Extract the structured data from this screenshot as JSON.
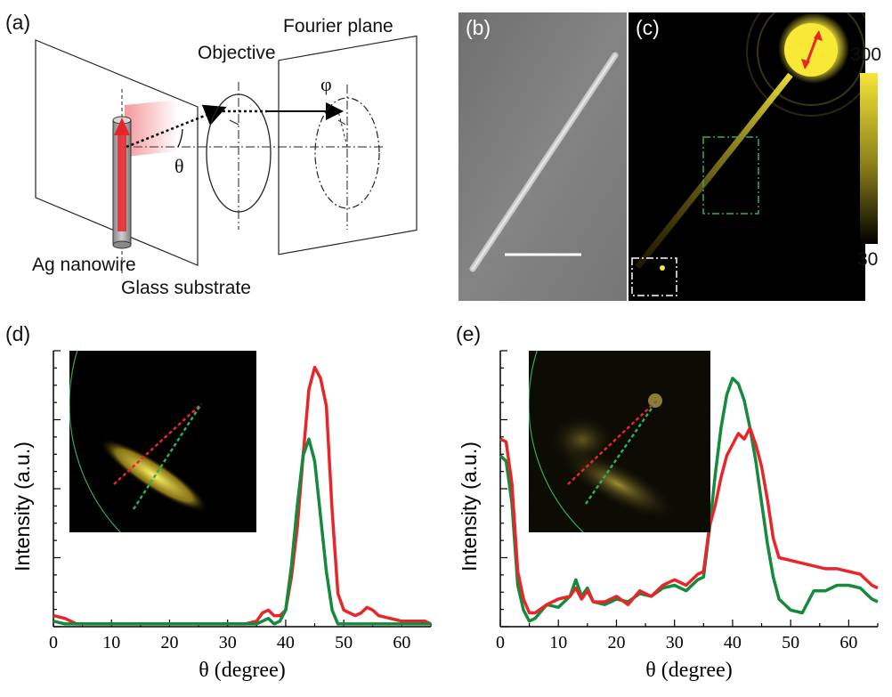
{
  "panels": {
    "a": {
      "label": "(a)",
      "objective": "Objective",
      "fourier_plane": "Fourier plane",
      "phi": "φ",
      "theta": "θ",
      "nanowire": "Ag nanowire",
      "substrate": "Glass substrate"
    },
    "b": {
      "label": "(b)"
    },
    "c": {
      "label": "(c)",
      "colorbar_max": "300",
      "colorbar_min": "30"
    },
    "d": {
      "label": "(d)"
    },
    "e": {
      "label": "(e)"
    }
  },
  "colors": {
    "red": "#e8262a",
    "green": "#138a3c",
    "yellow": "#f5e63a"
  },
  "chart_data": [
    {
      "type": "line",
      "panel": "d",
      "xlabel": "θ (degree)",
      "ylabel": "Intensity (a.u.)",
      "xlim": [
        0,
        65
      ],
      "ylim": [
        0,
        1
      ],
      "xticks": [
        0,
        10,
        20,
        30,
        40,
        50,
        60
      ],
      "series": [
        {
          "color": "#e8262a",
          "x": [
            0,
            2,
            4,
            6,
            8,
            10,
            15,
            20,
            25,
            30,
            33,
            35,
            36,
            37,
            38,
            39,
            40,
            41,
            42,
            43,
            44,
            45,
            46,
            47,
            48,
            49,
            50,
            51,
            52,
            53,
            54,
            55,
            56,
            58,
            60,
            62,
            64,
            65
          ],
          "y": [
            0.04,
            0.03,
            0.01,
            0.01,
            0.01,
            0.01,
            0.01,
            0.01,
            0.01,
            0.01,
            0.01,
            0.02,
            0.05,
            0.06,
            0.04,
            0.04,
            0.06,
            0.18,
            0.36,
            0.62,
            0.86,
            0.94,
            0.9,
            0.8,
            0.42,
            0.12,
            0.06,
            0.05,
            0.04,
            0.05,
            0.07,
            0.06,
            0.04,
            0.03,
            0.02,
            0.02,
            0.02,
            0.01
          ]
        },
        {
          "color": "#138a3c",
          "x": [
            0,
            2,
            4,
            6,
            8,
            10,
            15,
            20,
            25,
            30,
            33,
            35,
            36,
            37,
            38,
            39,
            40,
            41,
            42,
            43,
            44,
            45,
            46,
            47,
            48,
            49,
            50,
            52,
            55,
            60,
            65
          ],
          "y": [
            0.02,
            0.01,
            0.01,
            0.01,
            0.01,
            0.01,
            0.01,
            0.01,
            0.01,
            0.01,
            0.01,
            0.01,
            0.02,
            0.03,
            0.01,
            0.02,
            0.06,
            0.22,
            0.44,
            0.62,
            0.68,
            0.6,
            0.4,
            0.2,
            0.06,
            0.01,
            0.01,
            0.01,
            0.01,
            0.01,
            0.01
          ]
        }
      ]
    },
    {
      "type": "line",
      "panel": "e",
      "xlabel": "θ (degree)",
      "ylabel": "Intensity (a.u.)",
      "xlim": [
        0,
        65
      ],
      "ylim": [
        0,
        1
      ],
      "xticks": [
        0,
        10,
        20,
        30,
        40,
        50,
        60
      ],
      "series": [
        {
          "color": "#138a3c",
          "x": [
            0,
            1,
            2,
            3,
            4,
            5,
            6,
            8,
            10,
            12,
            13,
            14,
            15,
            16,
            18,
            20,
            22,
            24,
            26,
            28,
            30,
            32,
            34,
            35,
            36,
            37,
            38,
            39,
            40,
            41,
            42,
            43,
            44,
            45,
            46,
            47,
            48,
            50,
            52,
            54,
            56,
            58,
            60,
            62,
            64,
            65
          ],
          "y": [
            0.62,
            0.6,
            0.45,
            0.15,
            0.06,
            0.02,
            0.03,
            0.08,
            0.07,
            0.11,
            0.17,
            0.11,
            0.14,
            0.09,
            0.08,
            0.1,
            0.09,
            0.12,
            0.11,
            0.14,
            0.15,
            0.13,
            0.17,
            0.18,
            0.35,
            0.55,
            0.72,
            0.84,
            0.9,
            0.88,
            0.82,
            0.72,
            0.6,
            0.45,
            0.3,
            0.18,
            0.1,
            0.06,
            0.05,
            0.13,
            0.13,
            0.15,
            0.15,
            0.14,
            0.1,
            0.09
          ]
        },
        {
          "color": "#e8262a",
          "x": [
            0,
            1,
            2,
            3,
            4,
            5,
            6,
            8,
            10,
            12,
            13,
            14,
            15,
            16,
            18,
            20,
            22,
            24,
            26,
            28,
            30,
            32,
            34,
            35,
            36,
            37,
            38,
            39,
            40,
            41,
            42,
            43,
            44,
            45,
            46,
            47,
            48,
            50,
            52,
            54,
            56,
            58,
            60,
            62,
            64,
            65
          ],
          "y": [
            0.68,
            0.67,
            0.52,
            0.2,
            0.1,
            0.05,
            0.05,
            0.08,
            0.1,
            0.11,
            0.14,
            0.1,
            0.13,
            0.09,
            0.09,
            0.11,
            0.08,
            0.13,
            0.11,
            0.15,
            0.17,
            0.15,
            0.19,
            0.2,
            0.36,
            0.44,
            0.54,
            0.62,
            0.66,
            0.7,
            0.68,
            0.72,
            0.66,
            0.58,
            0.46,
            0.32,
            0.25,
            0.24,
            0.23,
            0.22,
            0.21,
            0.21,
            0.2,
            0.19,
            0.15,
            0.14
          ]
        }
      ]
    }
  ]
}
